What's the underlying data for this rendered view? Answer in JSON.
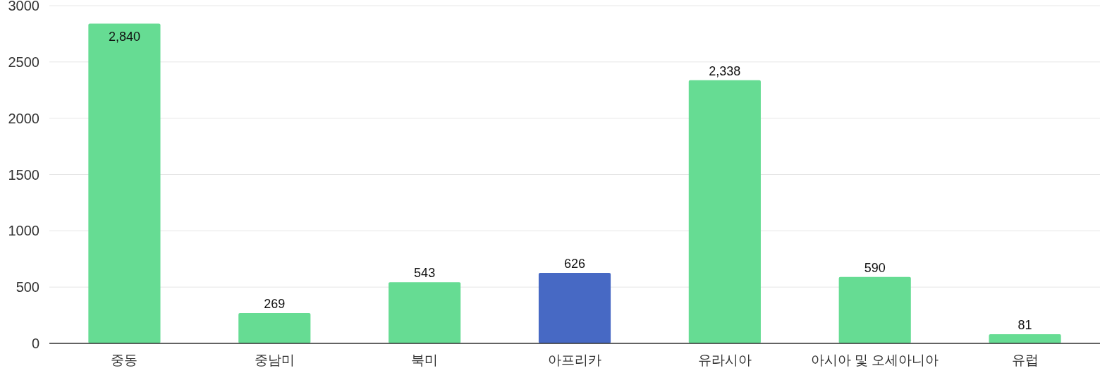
{
  "chart_data": {
    "type": "bar",
    "categories": [
      "중동",
      "중남미",
      "북미",
      "아프리카",
      "유라시아",
      "아시아 및 오세아니아",
      "유럽"
    ],
    "values": [
      2840,
      269,
      543,
      626,
      2338,
      590,
      81
    ],
    "colors": [
      "#66dc93",
      "#66dc93",
      "#66dc93",
      "#4769c4",
      "#66dc93",
      "#66dc93",
      "#66dc93"
    ],
    "value_labels": [
      "2,840",
      "269",
      "543",
      "626",
      "2,338",
      "590",
      "81"
    ],
    "ylim": [
      0,
      3000
    ],
    "yticks": [
      0,
      500,
      1000,
      1500,
      2000,
      2500,
      3000
    ],
    "grid": "y"
  }
}
